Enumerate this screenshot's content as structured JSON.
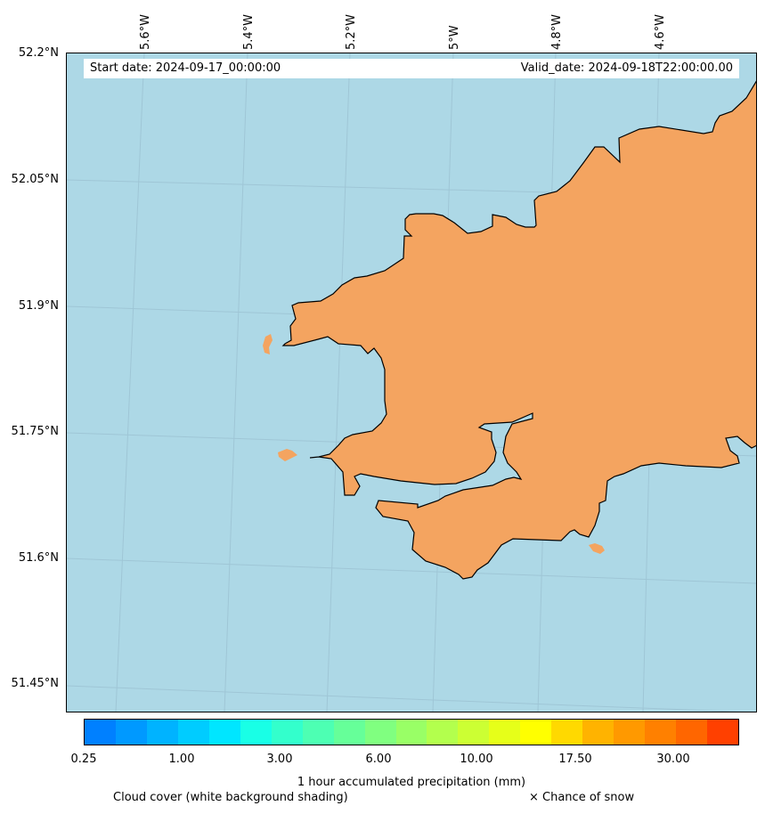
{
  "map": {
    "start_date": "Start date: 2024-09-17_00:00:00",
    "valid_date": "Valid_date: 2024-09-18T22:00:00.00",
    "longitude_labels": [
      "5.6°W",
      "5.4°W",
      "5.2°W",
      "5°W",
      "4.8°W",
      "4.6°W"
    ],
    "latitude_labels": [
      "52.2°N",
      "52.05°N",
      "51.9°N",
      "51.75°N",
      "51.6°N",
      "51.45°N"
    ],
    "sea_color": "#add8e6",
    "land_color": "#f4a460"
  },
  "colorbar": {
    "title": "1 hour accumulated precipitation (mm)",
    "tick_labels": [
      "0.25",
      "1.00",
      "3.00",
      "6.00",
      "10.00",
      "17.50",
      "30.00"
    ],
    "colors": [
      "#0080ff",
      "#0099ff",
      "#00b3ff",
      "#00ccff",
      "#00e6ff",
      "#19ffe6",
      "#33ffcc",
      "#4dffb3",
      "#66ff99",
      "#80ff80",
      "#99ff66",
      "#b3ff4d",
      "#ccff33",
      "#e6ff19",
      "#ffff00",
      "#ffd900",
      "#ffb300",
      "#ff9900",
      "#ff8000",
      "#ff6600",
      "#ff4000"
    ]
  },
  "notes": {
    "cloud": "Cloud cover (white background shading)",
    "snow": "× Chance of snow"
  }
}
